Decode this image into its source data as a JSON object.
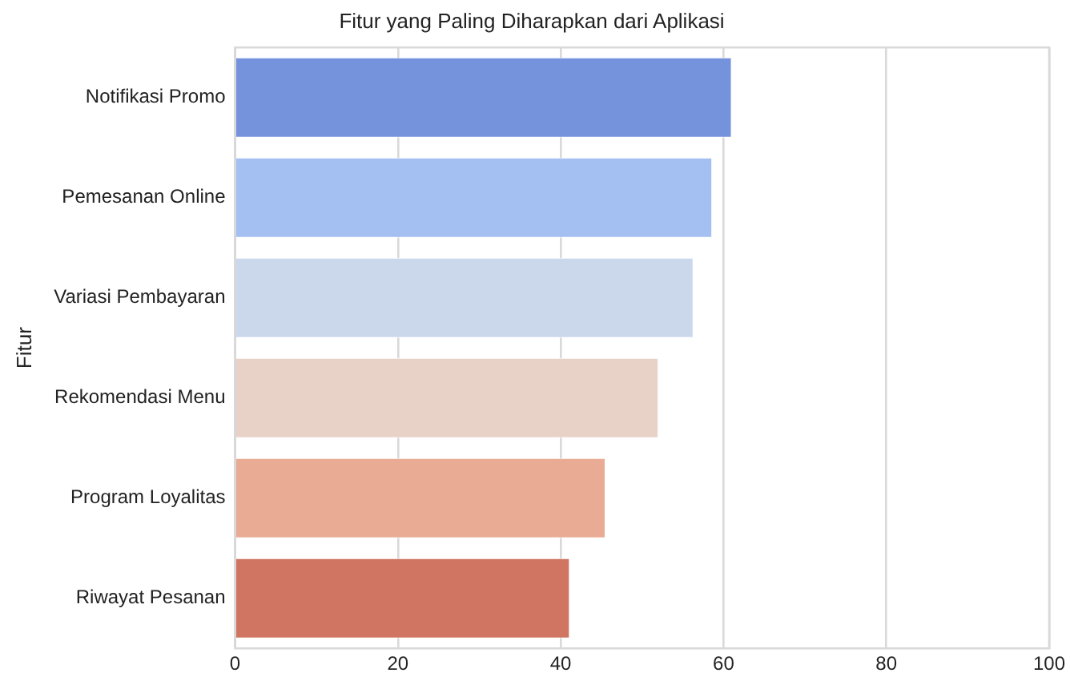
{
  "chart_data": {
    "type": "bar",
    "orientation": "horizontal",
    "title": "Fitur yang Paling Diharapkan dari Aplikasi",
    "ylabel": "Fitur",
    "categories": [
      "Notifikasi Promo",
      "Pemesanan Online",
      "Variasi Pembayaran",
      "Rekomendasi Menu",
      "Program Loyalitas",
      "Riwayat Pesanan"
    ],
    "values": [
      61,
      58.6,
      56.3,
      52,
      45.5,
      41.1
    ],
    "colors": [
      "#7593dc",
      "#a4bff2",
      "#cbd8ec",
      "#e8d2c8",
      "#eaab94",
      "#d07562"
    ],
    "xlim": [
      0,
      100
    ],
    "xticks": [
      0,
      20,
      40,
      60,
      80,
      100
    ],
    "grid": "x"
  }
}
